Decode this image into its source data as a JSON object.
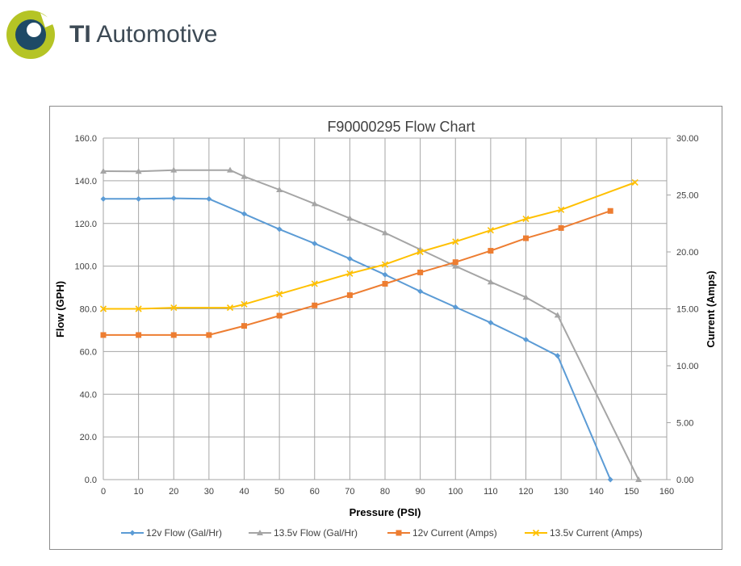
{
  "logo": {
    "brand_bold": "TI",
    "brand_rest": "Automotive",
    "ring_color": "#b5c425",
    "core_color": "#1e4a66"
  },
  "chart_data": {
    "type": "line",
    "title": "F90000295  Flow Chart",
    "xlabel": "Pressure (PSI)",
    "ylabel": "Flow (GPH)",
    "y2label": "Current (Amps)",
    "xlim": [
      0,
      160
    ],
    "ylim": [
      0,
      160
    ],
    "y2lim": [
      0,
      30
    ],
    "x_ticks": [
      "0",
      "10",
      "20",
      "30",
      "40",
      "50",
      "60",
      "70",
      "80",
      "90",
      "100",
      "110",
      "120",
      "130",
      "140",
      "150",
      "160"
    ],
    "y_ticks": [
      "0.0",
      "20.0",
      "40.0",
      "60.0",
      "80.0",
      "100.0",
      "120.0",
      "140.0",
      "160.0"
    ],
    "y2_ticks": [
      "0.00",
      "5.00",
      "10.00",
      "15.00",
      "20.00",
      "25.00",
      "30.00"
    ],
    "grid": true,
    "legend_position": "bottom",
    "series": [
      {
        "name": "12v Flow (Gal/Hr)",
        "axis": "left",
        "color": "#5b9bd5",
        "marker": "diamond",
        "x": [
          0,
          10,
          20,
          30,
          40,
          50,
          60,
          70,
          80,
          90,
          100,
          110,
          120,
          129,
          144
        ],
        "y": [
          131.5,
          131.5,
          131.8,
          131.5,
          124.5,
          117.3,
          110.6,
          103.5,
          96.0,
          88.2,
          80.8,
          73.5,
          65.6,
          58.0,
          0
        ]
      },
      {
        "name": "13.5v Flow (Gal/Hr)",
        "axis": "left",
        "color": "#a5a5a5",
        "marker": "triangle",
        "x": [
          0,
          10,
          20,
          36,
          40,
          50,
          60,
          70,
          80,
          90,
          100,
          110,
          120,
          129,
          152
        ],
        "y": [
          144.5,
          144.4,
          145.0,
          145.0,
          142.0,
          135.8,
          129.2,
          122.4,
          115.6,
          107.8,
          100.0,
          92.6,
          85.4,
          77.0,
          0
        ]
      },
      {
        "name": "12v Current (Amps)",
        "axis": "right",
        "color": "#ed7d31",
        "marker": "square",
        "x": [
          0,
          10,
          20,
          30,
          40,
          50,
          60,
          70,
          80,
          90,
          100,
          110,
          120,
          130,
          144
        ],
        "y": [
          12.7,
          12.7,
          12.7,
          12.7,
          13.5,
          14.4,
          15.3,
          16.2,
          17.2,
          18.2,
          19.1,
          20.1,
          21.2,
          22.1,
          23.6
        ]
      },
      {
        "name": "13.5v Current (Amps)",
        "axis": "right",
        "color": "#ffc000",
        "marker": "x",
        "x": [
          0,
          10,
          20,
          36,
          40,
          50,
          60,
          70,
          80,
          90,
          100,
          110,
          120,
          130,
          151
        ],
        "y": [
          15.0,
          15.0,
          15.1,
          15.1,
          15.4,
          16.3,
          17.2,
          18.1,
          18.9,
          20.0,
          20.9,
          21.9,
          22.9,
          23.7,
          26.1
        ]
      }
    ]
  }
}
